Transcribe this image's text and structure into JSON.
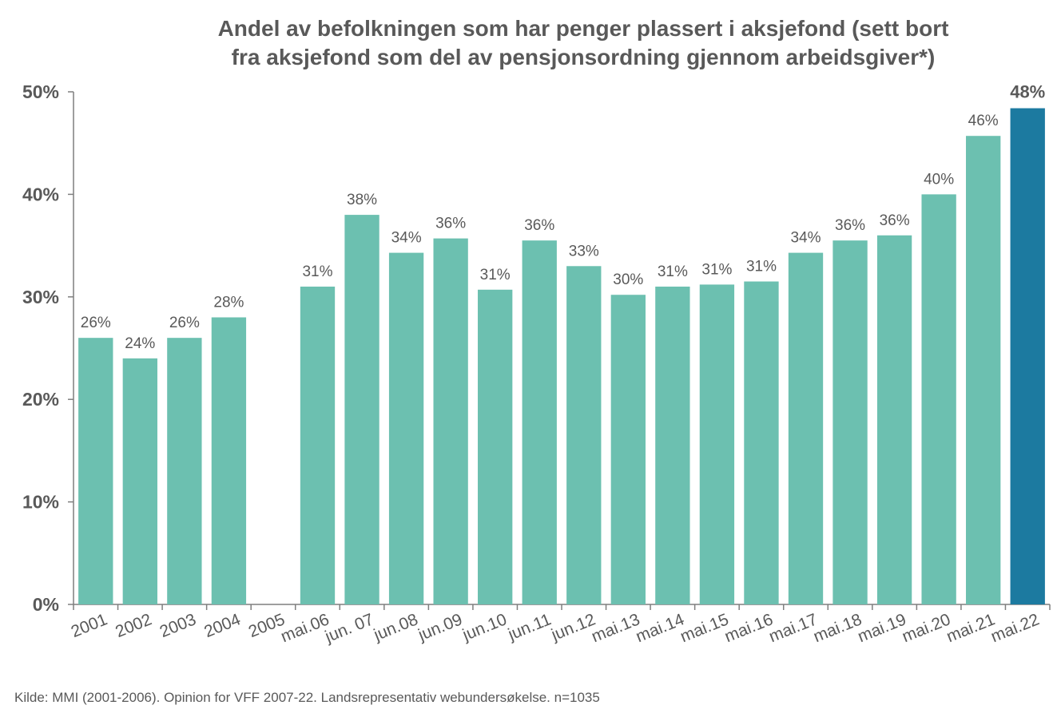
{
  "title_lines": [
    "Andel av befolkningen som har penger plassert i aksjefond (sett bort",
    "fra aksjefond som del av pensjonsordning gjennom arbeidsgiver*)"
  ],
  "source": "Kilde: MMI (2001-2006). Opinion for VFF 2007-22. Landsrepresentativ webundersøkelse. n=1035",
  "colors": {
    "bar": "#6cc0b0",
    "highlight": "#1c7aa0",
    "axis": "#7f7f7f",
    "text": "#595959"
  },
  "chart_data": {
    "type": "bar",
    "title": "Andel av befolkningen som har penger plassert i aksjefond (sett bort fra aksjefond som del av pensjonsordning gjennom arbeidsgiver*)",
    "categories": [
      "2001",
      "2002",
      "2003",
      "2004",
      "2005",
      "mai.06",
      "jun. 07",
      "jun.08",
      "jun.09",
      "jun.10",
      "jun.11",
      "jun.12",
      "mai.13",
      "mai.14",
      "mai.15",
      "mai.16",
      "mai.17",
      "mai.18",
      "mai.19",
      "mai.20",
      "mai.21",
      "mai.22"
    ],
    "values": [
      26,
      24,
      26,
      28,
      null,
      31,
      38,
      34.3,
      35.7,
      30.7,
      35.5,
      33,
      30.2,
      31,
      31.2,
      31.5,
      34.3,
      35.5,
      36,
      40,
      45.7,
      48.4
    ],
    "data_labels": [
      "26%",
      "24%",
      "26%",
      "28%",
      "",
      "31%",
      "38%",
      "34%",
      "36%",
      "31%",
      "36%",
      "33%",
      "30%",
      "31%",
      "31%",
      "31%",
      "34%",
      "36%",
      "36%",
      "40%",
      "46%",
      "48%"
    ],
    "highlight_index": 21,
    "ylim": [
      0,
      50
    ],
    "yticks": [
      0,
      10,
      20,
      30,
      40,
      50
    ],
    "ytick_labels": [
      "0%",
      "10%",
      "20%",
      "30%",
      "40%",
      "50%"
    ],
    "xlabel": "",
    "ylabel": "",
    "grid": false,
    "legend": "none"
  }
}
